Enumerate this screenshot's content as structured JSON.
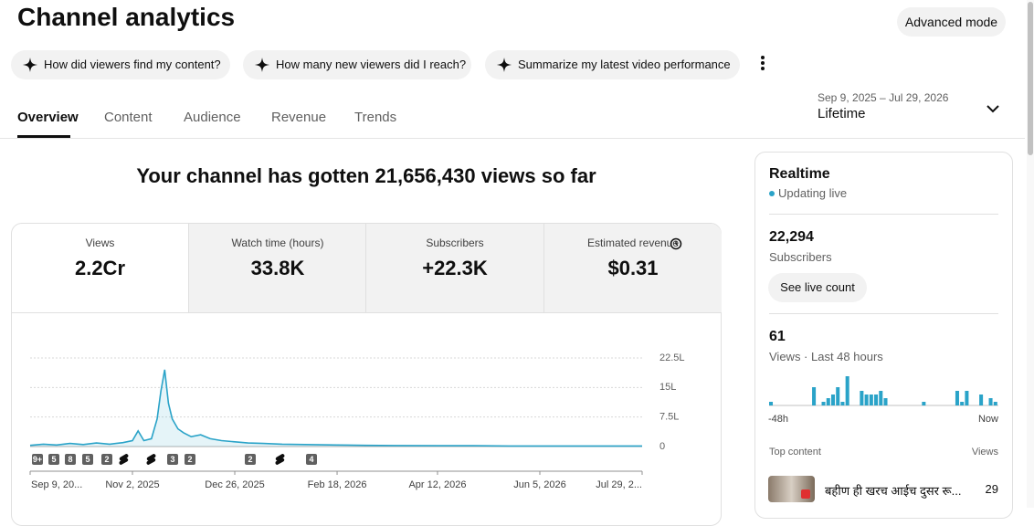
{
  "header": {
    "title": "Channel analytics",
    "advanced_mode": "Advanced mode"
  },
  "prompts": [
    "How did viewers find my content?",
    "How many new viewers did I reach?",
    "Summarize my latest video performance"
  ],
  "tabs": [
    "Overview",
    "Content",
    "Audience",
    "Revenue",
    "Trends"
  ],
  "date_range": {
    "range": "Sep 9, 2025 – Jul 29, 2026",
    "period": "Lifetime"
  },
  "headline": "Your channel has gotten 21,656,430 views so far",
  "metrics": [
    {
      "label": "Views",
      "value": "2.2Cr"
    },
    {
      "label": "Watch time (hours)",
      "value": "33.8K"
    },
    {
      "label": "Subscribers",
      "value": "+22.3K"
    },
    {
      "label": "Estimated revenue",
      "value": "$0.31"
    }
  ],
  "chart_data": [
    {
      "type": "line",
      "color": "#2aa3c8",
      "x": [
        "2025-09-09",
        "2025-09-16",
        "2025-09-23",
        "2025-09-30",
        "2025-10-07",
        "2025-10-14",
        "2025-10-21",
        "2025-10-28",
        "2025-11-02",
        "2025-11-05",
        "2025-11-08",
        "2025-11-12",
        "2025-11-15",
        "2025-11-17",
        "2025-11-19",
        "2025-11-21",
        "2025-11-23",
        "2025-11-26",
        "2025-11-29",
        "2025-12-03",
        "2025-12-08",
        "2025-12-13",
        "2025-12-19",
        "2025-12-26",
        "2026-01-02",
        "2026-01-10",
        "2026-01-20",
        "2026-02-01",
        "2026-02-18",
        "2026-03-05",
        "2026-03-20",
        "2026-04-12",
        "2026-05-01",
        "2026-05-20",
        "2026-06-05",
        "2026-06-25",
        "2026-07-15",
        "2026-07-29"
      ],
      "values": [
        30000,
        60000,
        40000,
        80000,
        50000,
        90000,
        60000,
        100000,
        150000,
        400000,
        150000,
        200000,
        700000,
        1400000,
        1950000,
        1100000,
        700000,
        450000,
        350000,
        250000,
        300000,
        200000,
        150000,
        120000,
        90000,
        80000,
        60000,
        50000,
        40000,
        30000,
        25000,
        20000,
        20000,
        15000,
        15000,
        15000,
        15000,
        15000
      ],
      "xlim": [
        "2025-09-09",
        "2026-07-29"
      ],
      "xticks": [
        {
          "value": "2025-09-09",
          "label": "Sep 9, 20..."
        },
        {
          "value": "2025-11-02",
          "label": "Nov 2, 2025"
        },
        {
          "value": "2025-12-26",
          "label": "Dec 26, 2025"
        },
        {
          "value": "2026-02-18",
          "label": "Feb 18, 2026"
        },
        {
          "value": "2026-04-12",
          "label": "Apr 12, 2026"
        },
        {
          "value": "2026-06-05",
          "label": "Jun 5, 2026"
        },
        {
          "value": "2026-07-29",
          "label": "Jul 29, 2..."
        }
      ],
      "ylim": [
        0,
        2250000
      ],
      "yticks": [
        0,
        {
          "value": 750000,
          "label": "7.5L"
        },
        {
          "value": 1500000,
          "label": "15L"
        },
        {
          "value": 2250000,
          "label": "22.5L"
        }
      ],
      "grid": true,
      "markers": [
        "9+",
        "5",
        "8",
        "5",
        "2",
        "3",
        "2",
        "2",
        "4"
      ]
    },
    {
      "type": "bar",
      "color": "#2aa3c8",
      "categories": [
        "-48h",
        null,
        null,
        null,
        null,
        null,
        null,
        null,
        null,
        null,
        null,
        null,
        null,
        null,
        null,
        null,
        null,
        null,
        null,
        null,
        null,
        null,
        null,
        null,
        null,
        null,
        null,
        null,
        null,
        null,
        null,
        null,
        null,
        null,
        null,
        null,
        null,
        null,
        null,
        null,
        null,
        null,
        null,
        null,
        null,
        null,
        null,
        "Now"
      ],
      "values": [
        1,
        0,
        0,
        0,
        0,
        0,
        0,
        0,
        0,
        5,
        0,
        1,
        2,
        3,
        5,
        1,
        8,
        0,
        0,
        4,
        3,
        3,
        3,
        4,
        2,
        0,
        0,
        0,
        0,
        0,
        0,
        0,
        1,
        0,
        0,
        0,
        0,
        0,
        0,
        4,
        1,
        4,
        0,
        0,
        3,
        0,
        2,
        1
      ]
    }
  ],
  "realtime": {
    "title": "Realtime",
    "status": "Updating live",
    "subscribers": {
      "value": "22,294",
      "label": "Subscribers"
    },
    "button": "See live count",
    "views": {
      "value": "61",
      "label": "Views · Last 48 hours"
    },
    "top_content": {
      "title": "Top content",
      "column": "Views",
      "rows": [
        {
          "title": "बहीण ही खरच आईच दुसर रू...",
          "views": 29
        }
      ]
    }
  }
}
